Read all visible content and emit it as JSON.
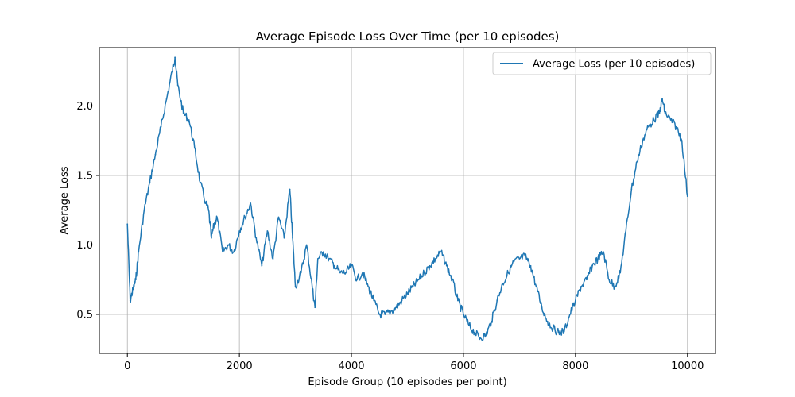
{
  "chart_data": {
    "type": "line",
    "title": "Average Episode Loss Over Time (per 10 episodes)",
    "xlabel": "Episode Group (10 episodes per point)",
    "ylabel": "Average Loss",
    "xlim": [
      -500,
      10500
    ],
    "ylim": [
      0.22,
      2.42
    ],
    "x_ticks": [
      0,
      2000,
      4000,
      6000,
      8000,
      10000
    ],
    "x_tick_labels": [
      "0",
      "2000",
      "4000",
      "6000",
      "8000",
      "10000"
    ],
    "y_ticks": [
      0.5,
      1.0,
      1.5,
      2.0
    ],
    "y_tick_labels": [
      "0.5",
      "1.0",
      "1.5",
      "2.0"
    ],
    "grid": true,
    "legend": {
      "placement": "top-right"
    },
    "series": [
      {
        "name": "Average Loss (per 10 episodes)",
        "color": "#1f77b4",
        "x": [
          0,
          50,
          100,
          150,
          200,
          300,
          400,
          500,
          600,
          700,
          800,
          850,
          900,
          1000,
          1100,
          1200,
          1300,
          1400,
          1450,
          1500,
          1550,
          1600,
          1700,
          1800,
          1900,
          2000,
          2100,
          2200,
          2300,
          2400,
          2500,
          2600,
          2700,
          2800,
          2900,
          2950,
          3000,
          3100,
          3200,
          3300,
          3350,
          3400,
          3500,
          3600,
          3700,
          3800,
          3900,
          4000,
          4100,
          4200,
          4300,
          4400,
          4500,
          4600,
          4700,
          4800,
          4900,
          5000,
          5100,
          5200,
          5300,
          5400,
          5500,
          5600,
          5700,
          5800,
          5900,
          6000,
          6100,
          6200,
          6300,
          6400,
          6500,
          6600,
          6700,
          6800,
          6900,
          7000,
          7100,
          7200,
          7300,
          7400,
          7500,
          7600,
          7700,
          7800,
          7900,
          8000,
          8100,
          8200,
          8300,
          8400,
          8500,
          8600,
          8700,
          8800,
          8900,
          9000,
          9100,
          9200,
          9300,
          9400,
          9500,
          9550,
          9600,
          9700,
          9800,
          9900,
          10000
        ],
        "y": [
          1.15,
          0.6,
          0.68,
          0.75,
          0.95,
          1.25,
          1.45,
          1.65,
          1.85,
          2.05,
          2.25,
          2.35,
          2.15,
          1.95,
          1.9,
          1.7,
          1.45,
          1.3,
          1.25,
          1.05,
          1.15,
          1.2,
          0.95,
          1.0,
          0.95,
          1.1,
          1.2,
          1.3,
          1.05,
          0.85,
          1.1,
          0.9,
          1.2,
          1.05,
          1.4,
          1.05,
          0.7,
          0.8,
          1.0,
          0.7,
          0.55,
          0.9,
          0.95,
          0.9,
          0.85,
          0.8,
          0.8,
          0.85,
          0.75,
          0.8,
          0.7,
          0.6,
          0.5,
          0.5,
          0.52,
          0.55,
          0.6,
          0.65,
          0.7,
          0.75,
          0.8,
          0.85,
          0.9,
          0.95,
          0.85,
          0.75,
          0.6,
          0.5,
          0.42,
          0.37,
          0.33,
          0.35,
          0.45,
          0.6,
          0.72,
          0.8,
          0.88,
          0.9,
          0.92,
          0.85,
          0.7,
          0.55,
          0.45,
          0.4,
          0.37,
          0.38,
          0.5,
          0.6,
          0.7,
          0.75,
          0.85,
          0.9,
          0.95,
          0.75,
          0.7,
          0.8,
          1.1,
          1.4,
          1.6,
          1.75,
          1.85,
          1.9,
          1.95,
          2.05,
          1.95,
          1.9,
          1.85,
          1.75,
          1.35
        ]
      }
    ]
  }
}
